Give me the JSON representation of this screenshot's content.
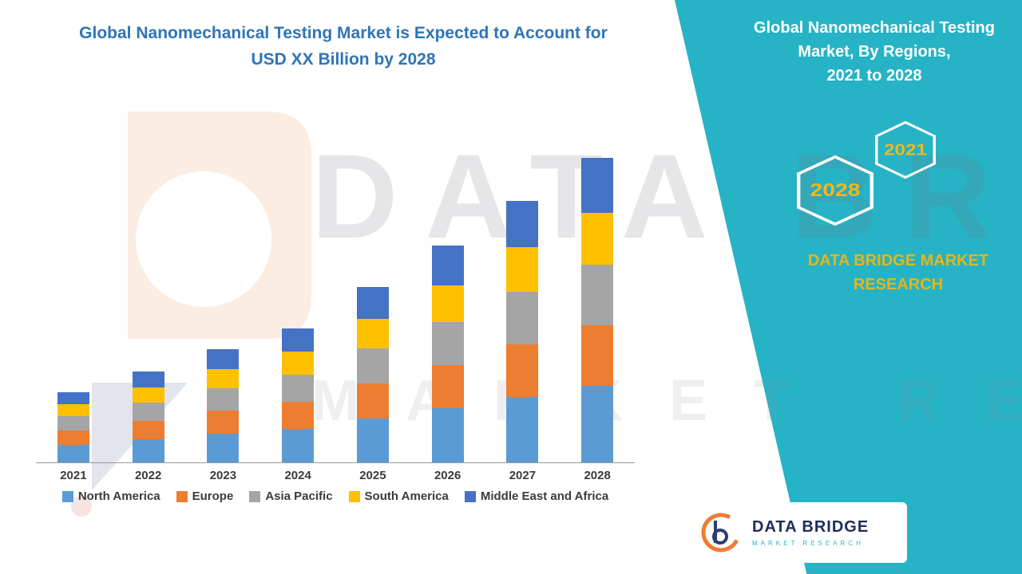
{
  "title": {
    "line1": "Global Nanomechanical Testing Market is Expected to Account for",
    "line2": "USD XX Billion by 2028"
  },
  "side_panel": {
    "title_lines": [
      "Global Nanomechanical Testing",
      "Market, By Regions,",
      "2021 to 2028"
    ],
    "hex_back_year": "2028",
    "hex_front_year": "2021",
    "brand_line1": "DATA BRIDGE MARKET",
    "brand_line2": "RESEARCH",
    "colors": {
      "panel": "#27b3c6",
      "year_text": "#efb91b",
      "brand_text": "#e5b619"
    }
  },
  "watermark": {
    "line1": "DATA BRIDGE",
    "line2": "MARKET RESEARCH"
  },
  "logo_card": {
    "name": "DATA BRIDGE",
    "tagline": "MARKET RESEARCH"
  },
  "chart_data": {
    "type": "bar",
    "stacked": true,
    "title": "Global Nanomechanical Testing Market is Expected to Account for USD XX Billion by 2028",
    "xlabel": "",
    "ylabel": "",
    "ylim": [
      0,
      40
    ],
    "grid": false,
    "legend_position": "bottom",
    "axis_labels_visible": false,
    "categories": [
      "2021",
      "2022",
      "2023",
      "2024",
      "2025",
      "2026",
      "2027",
      "2028"
    ],
    "series": [
      {
        "name": "North America",
        "color": "#5B9BD5",
        "values": [
          2.2,
          2.9,
          3.6,
          4.2,
          5.5,
          6.8,
          8.2,
          9.6
        ]
      },
      {
        "name": "Europe",
        "color": "#ED7D31",
        "values": [
          1.8,
          2.3,
          2.9,
          3.4,
          4.4,
          5.4,
          6.6,
          7.6
        ]
      },
      {
        "name": "Asia Pacific",
        "color": "#A5A5A5",
        "values": [
          1.8,
          2.3,
          2.8,
          3.4,
          4.4,
          5.4,
          6.6,
          7.6
        ]
      },
      {
        "name": "South America",
        "color": "#FFC000",
        "values": [
          1.5,
          1.9,
          2.4,
          2.9,
          3.7,
          4.6,
          5.6,
          6.5
        ]
      },
      {
        "name": "Middle East and Africa",
        "color": "#4472C4",
        "values": [
          1.5,
          2.0,
          2.5,
          2.9,
          4.0,
          5.0,
          5.8,
          6.9
        ]
      }
    ],
    "totals": [
      8.8,
      11.4,
      14.2,
      16.8,
      22.0,
      27.2,
      32.8,
      38.2
    ]
  }
}
